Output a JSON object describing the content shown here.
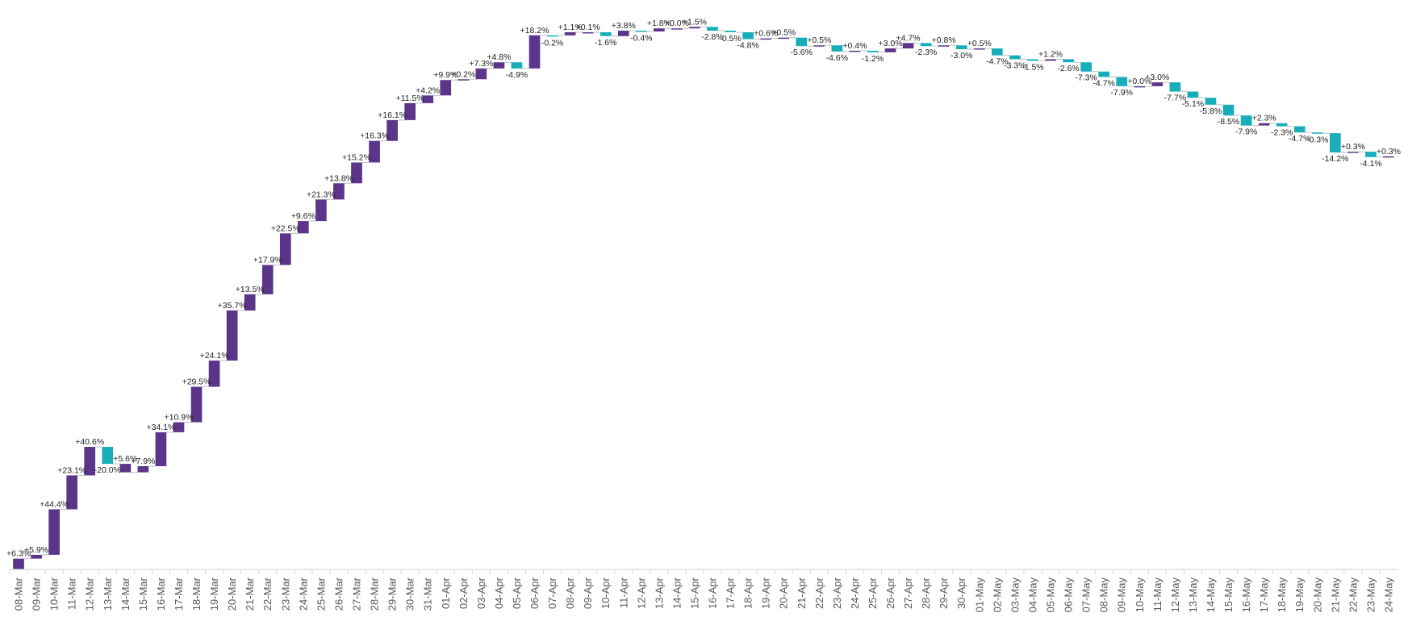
{
  "chart_data": {
    "type": "bar",
    "subtype": "waterfall",
    "title": "",
    "xlabel": "",
    "ylabel": "",
    "grid": false,
    "legend": "none",
    "colors": {
      "increase": "#5B3589",
      "decrease": "#17AEBA",
      "connector": "#BFBFBF",
      "axis": "#D9D9D9"
    },
    "categories": [
      "08-Mar",
      "09-Mar",
      "10-Mar",
      "11-Mar",
      "12-Mar",
      "13-Mar",
      "14-Mar",
      "15-Mar",
      "16-Mar",
      "17-Mar",
      "18-Mar",
      "19-Mar",
      "20-Mar",
      "21-Mar",
      "22-Mar",
      "23-Mar",
      "24-Mar",
      "25-Mar",
      "26-Mar",
      "27-Mar",
      "28-Mar",
      "29-Mar",
      "30-Mar",
      "31-Mar",
      "01-Apr",
      "02-Apr",
      "03-Apr",
      "04-Apr",
      "05-Apr",
      "06-Apr",
      "07-Apr",
      "08-Apr",
      "09-Apr",
      "10-Apr",
      "11-Apr",
      "12-Apr",
      "13-Apr",
      "14-Apr",
      "15-Apr",
      "16-Apr",
      "17-Apr",
      "18-Apr",
      "19-Apr",
      "20-Apr",
      "21-Apr",
      "22-Apr",
      "23-Apr",
      "24-Apr",
      "25-Apr",
      "26-Apr",
      "27-Apr",
      "28-Apr",
      "29-Apr",
      "30-Apr",
      "01-May",
      "02-May",
      "03-May",
      "04-May",
      "05-May",
      "06-May",
      "07-May",
      "08-May",
      "09-May",
      "10-May",
      "11-May",
      "12-May",
      "13-May",
      "14-May",
      "15-May",
      "16-May",
      "17-May",
      "18-May",
      "19-May",
      "20-May",
      "21-May",
      "22-May",
      "23-May",
      "24-May"
    ],
    "labels": [
      "+6.3%",
      "+5.9%",
      "+44.4%",
      "+23.1%",
      "+40.6%",
      "-20.0%",
      "+5.6%",
      "+7.9%",
      "+34.1%",
      "+10.9%",
      "+29.5%",
      "+24.1%",
      "+35.7%",
      "+13.5%",
      "+17.9%",
      "+22.5%",
      "+9.6%",
      "+21.3%",
      "+13.8%",
      "+15.2%",
      "+16.3%",
      "+16.1%",
      "+11.5%",
      "+4.2%",
      "+9.9%",
      "+0.2%",
      "+7.3%",
      "+4.8%",
      "-4.9%",
      "+18.2%",
      "-0.2%",
      "+1.1%",
      "+0.1%",
      "-1.6%",
      "+3.8%",
      "-0.4%",
      "+1.8%",
      "+0.0%",
      "+1.5%",
      "-2.8%",
      "-0.5%",
      "-4.8%",
      "+0.6%",
      "+0.5%",
      "-5.6%",
      "+0.5%",
      "-4.6%",
      "+0.4%",
      "-1.2%",
      "+3.0%",
      "+4.7%",
      "-2.3%",
      "+0.8%",
      "-3.0%",
      "+0.5%",
      "-4.7%",
      "-3.3%",
      "-1.5%",
      "+1.2%",
      "-2.6%",
      "-7.3%",
      "-4.7%",
      "-7.9%",
      "+0.0%",
      "+3.0%",
      "-7.7%",
      "-5.1%",
      "-5.8%",
      "-8.5%",
      "-7.9%",
      "+2.3%",
      "-2.3%",
      "-4.7%",
      "-0.3%",
      "-14.2%",
      "+0.3%",
      "-4.1%",
      "+0.3%"
    ],
    "totals": [
      14,
      19,
      78,
      122,
      159,
      137,
      126,
      134,
      178,
      191,
      237,
      271,
      336,
      357,
      395,
      436,
      452,
      480,
      501,
      528,
      556,
      583,
      605,
      615,
      635,
      636,
      650,
      658,
      650,
      693,
      693,
      697,
      697,
      692,
      699,
      698,
      702,
      702,
      704,
      699,
      697,
      688,
      689,
      690,
      679,
      680,
      672,
      673,
      671,
      676,
      683,
      679,
      680,
      675,
      676,
      667,
      662,
      660,
      662,
      658,
      646,
      639,
      627,
      627,
      632,
      620,
      612,
      603,
      589,
      576,
      579,
      575,
      567,
      566,
      541,
      542,
      535,
      536
    ],
    "ylim": [
      0,
      720
    ],
    "baseline_start": 0
  }
}
